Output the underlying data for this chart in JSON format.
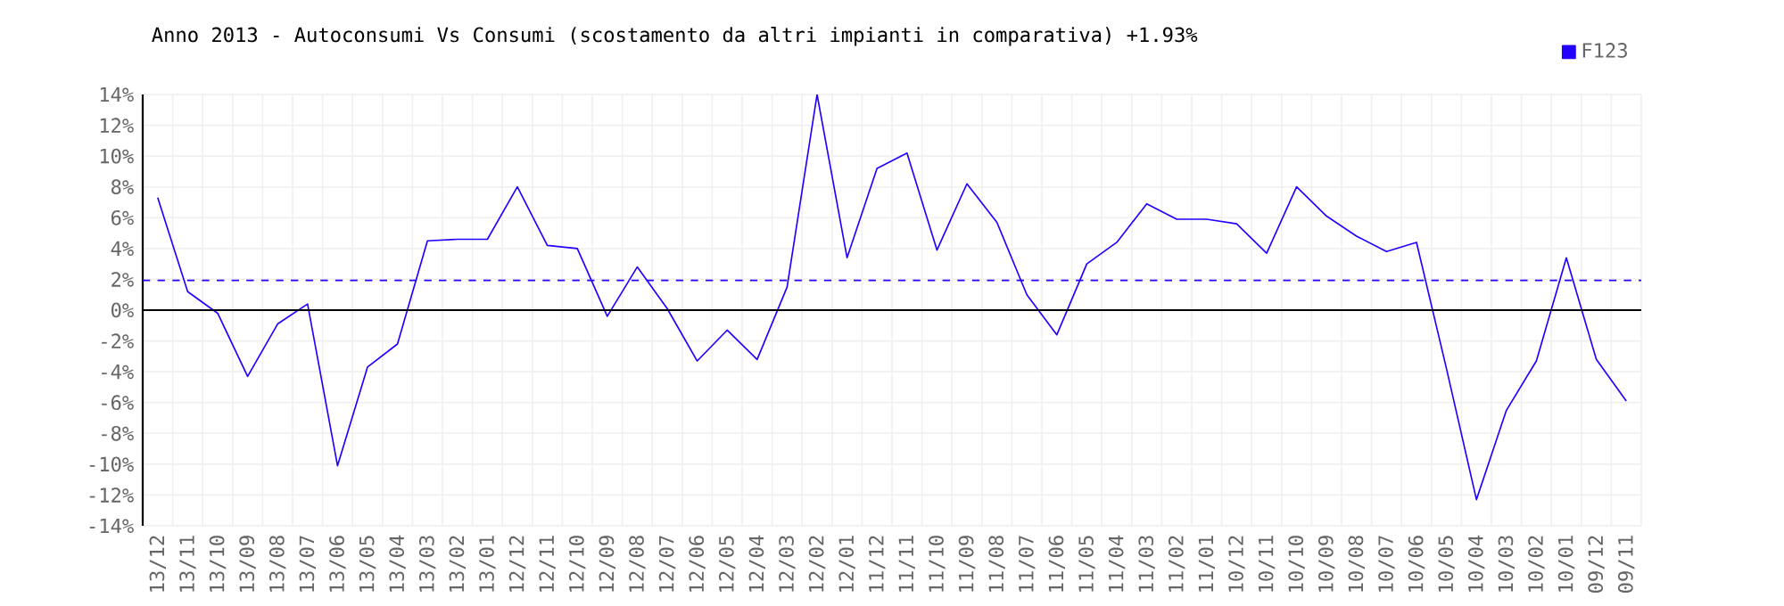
{
  "chart_data": {
    "type": "line",
    "title": "Anno 2013 - Autoconsumi Vs Consumi (scostamento da altri impianti in comparativa) +1.93%",
    "categories": [
      "13/12",
      "13/11",
      "13/10",
      "13/09",
      "13/08",
      "13/07",
      "13/06",
      "13/05",
      "13/04",
      "13/03",
      "13/02",
      "13/01",
      "12/12",
      "12/11",
      "12/10",
      "12/09",
      "12/08",
      "12/07",
      "12/06",
      "12/05",
      "12/04",
      "12/03",
      "12/02",
      "12/01",
      "11/12",
      "11/11",
      "11/10",
      "11/09",
      "11/08",
      "11/07",
      "11/06",
      "11/05",
      "11/04",
      "11/03",
      "11/02",
      "11/01",
      "10/12",
      "10/11",
      "10/10",
      "10/09",
      "10/08",
      "10/07",
      "10/06",
      "10/05",
      "10/04",
      "10/03",
      "10/02",
      "10/01",
      "09/12",
      "09/11"
    ],
    "series": [
      {
        "name": "F123",
        "color": "#2200ff",
        "values": [
          7.3,
          1.2,
          -0.2,
          -4.3,
          -0.9,
          0.4,
          -10.1,
          -3.7,
          -2.2,
          4.5,
          4.6,
          4.6,
          8.0,
          4.2,
          4.0,
          -0.4,
          2.8,
          0.1,
          -3.3,
          -1.3,
          -3.2,
          1.5,
          14.0,
          3.4,
          9.2,
          10.2,
          3.9,
          8.2,
          5.7,
          1.0,
          -1.6,
          3.0,
          4.4,
          6.9,
          5.9,
          5.9,
          5.6,
          3.7,
          8.0,
          6.1,
          4.8,
          3.8,
          4.4,
          -3.8,
          -12.3,
          -6.5,
          -3.3,
          3.4,
          -3.2,
          -5.9
        ]
      }
    ],
    "ylim": [
      -14,
      14
    ],
    "yticks": [
      {
        "value": -14,
        "label": "-14%"
      },
      {
        "value": -12,
        "label": "-12%"
      },
      {
        "value": -10,
        "label": "-10%"
      },
      {
        "value": -8,
        "label": "-8%"
      },
      {
        "value": -6,
        "label": "-6%"
      },
      {
        "value": -4,
        "label": "-4%"
      },
      {
        "value": -2,
        "label": "-2%"
      },
      {
        "value": 0,
        "label": "0%"
      },
      {
        "value": 2,
        "label": "2%"
      },
      {
        "value": 4,
        "label": "4%"
      },
      {
        "value": 6,
        "label": "6%"
      },
      {
        "value": 8,
        "label": "8%"
      },
      {
        "value": 10,
        "label": "10%"
      },
      {
        "value": 12,
        "label": "12%"
      },
      {
        "value": 14,
        "label": "14%"
      }
    ],
    "ref_lines": [
      {
        "axis": "y",
        "value": 0,
        "color": "#000000",
        "line_style": "solid"
      },
      {
        "axis": "y",
        "value": 1.93,
        "color": "#2200ff",
        "line_style": "dashed"
      }
    ],
    "grid": true,
    "legend": "top right",
    "marker": "none",
    "line_style": "solid"
  }
}
